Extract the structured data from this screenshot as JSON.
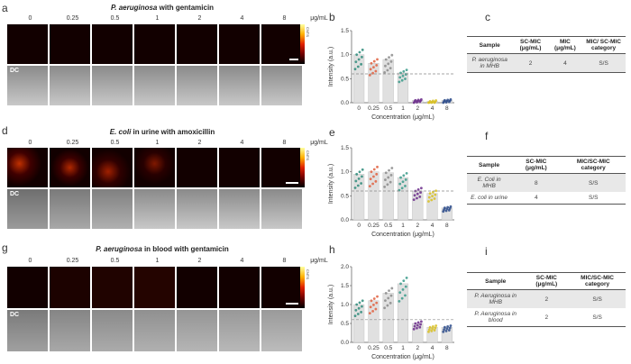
{
  "rows": [
    {
      "panel_image": "a",
      "panel_chart": "b",
      "panel_table": "c",
      "title_italic": "P. aeruginosa",
      "title_rest": " with gentamicin",
      "concentrations": [
        "0",
        "0.25",
        "0.5",
        "1",
        "2",
        "4",
        "8"
      ],
      "unit": "μg/mL",
      "dc_label": "DC",
      "colorbar_label": "CNTS"
    },
    {
      "panel_image": "d",
      "panel_chart": "e",
      "panel_table": "f",
      "title_italic": "E. coli",
      "title_rest": " in urine with amoxicillin",
      "concentrations": [
        "0",
        "0.25",
        "0.5",
        "1",
        "2",
        "4",
        "8"
      ],
      "unit": "μg/mL",
      "dc_label": "DC",
      "colorbar_label": "CNTS"
    },
    {
      "panel_image": "g",
      "panel_chart": "h",
      "panel_table": "i",
      "title_italic": "P. aeruginosa",
      "title_rest": " in blood with gentamicin",
      "concentrations": [
        "0",
        "0.25",
        "0.5",
        "1",
        "2",
        "4",
        "8"
      ],
      "unit": "μg/mL",
      "dc_label": "DC",
      "colorbar_label": "CNTS"
    }
  ],
  "tables": {
    "c": {
      "headers": [
        "Sample",
        "SC-MIC (μg/mL)",
        "MIC (μg/mL)",
        "MIC/ SC-MIC category"
      ],
      "rows": [
        [
          "P. aeruginosa in MHB",
          "2",
          "4",
          "S/S"
        ]
      ]
    },
    "f": {
      "headers": [
        "Sample",
        "SC-MIC (μg/mL)",
        "MIC/SC-MIC category"
      ],
      "rows": [
        [
          "E. Coli in MHB",
          "8",
          "S/S"
        ],
        [
          "E. coli in urine",
          "4",
          "S/S"
        ]
      ]
    },
    "i": {
      "headers": [
        "Sample",
        "SC-MIC (μg/mL)",
        "MIC/SC-MIC category"
      ],
      "rows": [
        [
          "P. Aeruginosa in MHB",
          "2",
          "S/S"
        ],
        [
          "P. Aeruginosa in blood",
          "2",
          "S/S"
        ]
      ]
    }
  },
  "chart_data": [
    {
      "type": "bar",
      "panel": "b",
      "categories": [
        "0",
        "0.25",
        "0.5",
        "1",
        "2",
        "4",
        "8"
      ],
      "values": [
        1.0,
        0.82,
        0.9,
        0.62,
        0.05,
        0.03,
        0.05
      ],
      "threshold": 0.6,
      "colors": [
        "#2e8b7a",
        "#e06040",
        "#8b8b8b",
        "#3a9a8a",
        "#6a2a8a",
        "#d8c020",
        "#2a4a8a"
      ],
      "xlabel": "Concentration (μg/mL)",
      "ylabel": "Intensity (a.u.)",
      "ylim": [
        0,
        1.5
      ],
      "yticks": [
        "0.0",
        "0.5",
        "1.0",
        "1.5"
      ]
    },
    {
      "type": "bar",
      "panel": "e",
      "categories": [
        "0",
        "0.25",
        "0.5",
        "1",
        "2",
        "4",
        "8"
      ],
      "values": [
        0.95,
        1.0,
        0.98,
        0.88,
        0.6,
        0.55,
        0.25
      ],
      "threshold": 0.6,
      "colors": [
        "#2e8b7a",
        "#e06040",
        "#8b8b8b",
        "#3a9a8a",
        "#6a2a8a",
        "#d8c020",
        "#2a4a8a"
      ],
      "xlabel": "Concentration (μg/mL)",
      "ylabel": "Intensity (a.u.)",
      "ylim": [
        0,
        1.5
      ],
      "yticks": [
        "0.0",
        "0.5",
        "1.0",
        "1.5"
      ]
    },
    {
      "type": "bar",
      "panel": "h",
      "categories": [
        "0",
        "0.25",
        "0.5",
        "1",
        "2",
        "4",
        "8"
      ],
      "values": [
        1.0,
        1.1,
        1.3,
        1.55,
        0.5,
        0.4,
        0.4
      ],
      "threshold": 0.6,
      "colors": [
        "#2e8b7a",
        "#e06040",
        "#8b8b8b",
        "#3a9a8a",
        "#6a2a8a",
        "#d8c020",
        "#2a4a8a"
      ],
      "xlabel": "Concentration (μg/mL)",
      "ylabel": "Intensity (a.u.)",
      "ylim": [
        0,
        2.0
      ],
      "yticks": [
        "0.0",
        "0.5",
        "1.0",
        "1.5",
        "2.0"
      ]
    }
  ]
}
